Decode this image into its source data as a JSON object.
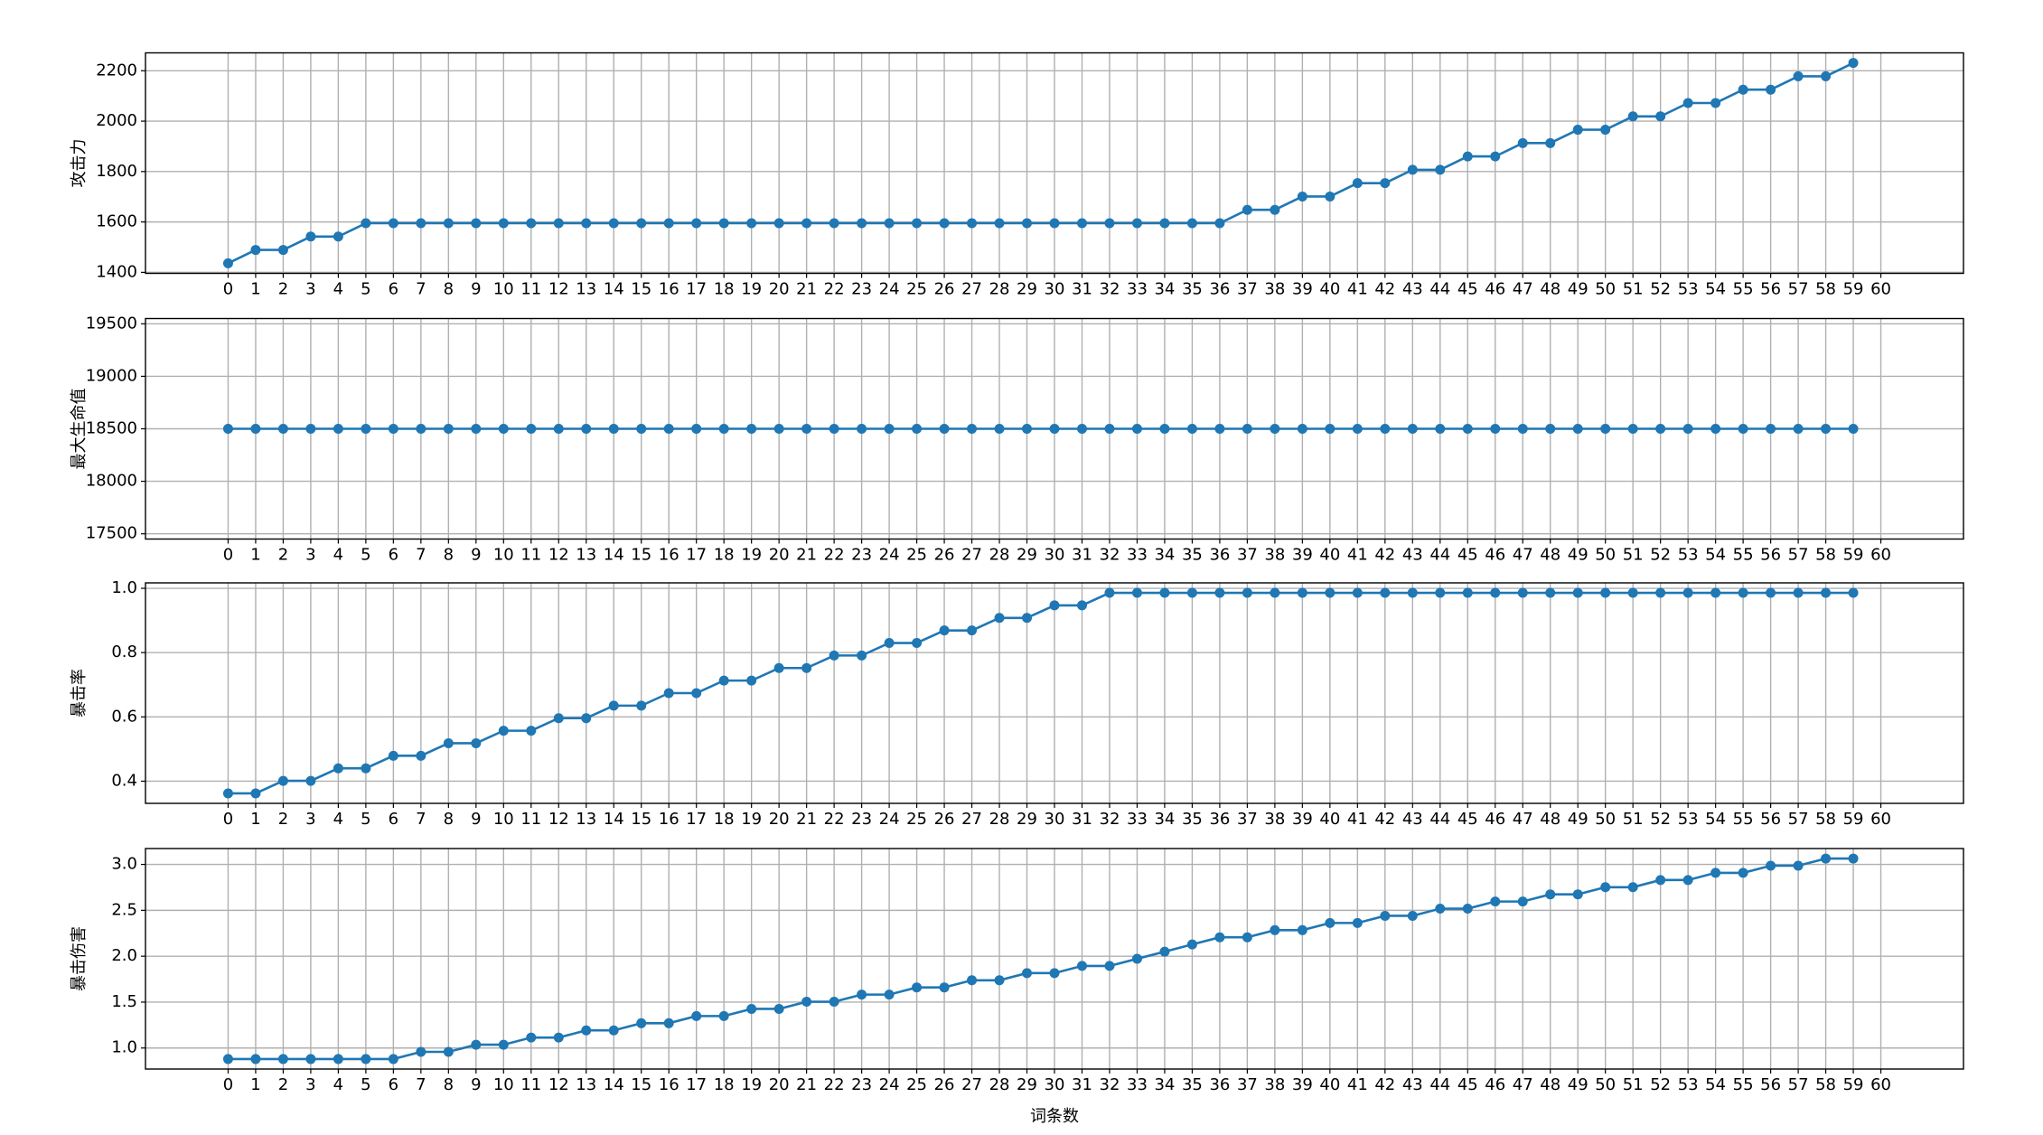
{
  "chart_data": [
    {
      "type": "line",
      "ylabel": "攻击力",
      "x": [
        0,
        1,
        2,
        3,
        4,
        5,
        6,
        7,
        8,
        9,
        10,
        11,
        12,
        13,
        14,
        15,
        16,
        17,
        18,
        19,
        20,
        21,
        22,
        23,
        24,
        25,
        26,
        27,
        28,
        29,
        30,
        31,
        32,
        33,
        34,
        35,
        36,
        37,
        38,
        39,
        40,
        41,
        42,
        43,
        44,
        45,
        46,
        47,
        48,
        49,
        50,
        51,
        52,
        53,
        54,
        55,
        56,
        57,
        58,
        59
      ],
      "series": [
        {
          "color": "#1f77b4",
          "values": [
            1436,
            1489,
            1489,
            1542,
            1542,
            1595,
            1595,
            1595,
            1595,
            1595,
            1595,
            1595,
            1595,
            1595,
            1595,
            1595,
            1595,
            1595,
            1595,
            1595,
            1595,
            1595,
            1595,
            1595,
            1595,
            1595,
            1595,
            1595,
            1595,
            1595,
            1595,
            1595,
            1595,
            1595,
            1595,
            1595,
            1595,
            1648,
            1648,
            1701,
            1701,
            1754,
            1754,
            1807,
            1807,
            1860,
            1860,
            1913,
            1913,
            1966,
            1966,
            2019,
            2019,
            2072,
            2072,
            2125,
            2125,
            2178,
            2178,
            2231
          ]
        }
      ],
      "xlim": [
        -3,
        63
      ],
      "xticks": [
        0,
        1,
        2,
        3,
        4,
        5,
        6,
        7,
        8,
        9,
        10,
        11,
        12,
        13,
        14,
        15,
        16,
        17,
        18,
        19,
        20,
        21,
        22,
        23,
        24,
        25,
        26,
        27,
        28,
        29,
        30,
        31,
        32,
        33,
        34,
        35,
        36,
        37,
        38,
        39,
        40,
        41,
        42,
        43,
        44,
        45,
        46,
        47,
        48,
        49,
        50,
        51,
        52,
        53,
        54,
        55,
        56,
        57,
        58,
        59,
        60
      ],
      "ylim": [
        1396,
        2271
      ],
      "yticks": [
        1400,
        1600,
        1800,
        2000,
        2200
      ],
      "grid": true
    },
    {
      "type": "line",
      "ylabel": "最大生命值",
      "x": [
        0,
        1,
        2,
        3,
        4,
        5,
        6,
        7,
        8,
        9,
        10,
        11,
        12,
        13,
        14,
        15,
        16,
        17,
        18,
        19,
        20,
        21,
        22,
        23,
        24,
        25,
        26,
        27,
        28,
        29,
        30,
        31,
        32,
        33,
        34,
        35,
        36,
        37,
        38,
        39,
        40,
        41,
        42,
        43,
        44,
        45,
        46,
        47,
        48,
        49,
        50,
        51,
        52,
        53,
        54,
        55,
        56,
        57,
        58,
        59
      ],
      "series": [
        {
          "color": "#1f77b4",
          "values": [
            18500,
            18500,
            18500,
            18500,
            18500,
            18500,
            18500,
            18500,
            18500,
            18500,
            18500,
            18500,
            18500,
            18500,
            18500,
            18500,
            18500,
            18500,
            18500,
            18500,
            18500,
            18500,
            18500,
            18500,
            18500,
            18500,
            18500,
            18500,
            18500,
            18500,
            18500,
            18500,
            18500,
            18500,
            18500,
            18500,
            18500,
            18500,
            18500,
            18500,
            18500,
            18500,
            18500,
            18500,
            18500,
            18500,
            18500,
            18500,
            18500,
            18500,
            18500,
            18500,
            18500,
            18500,
            18500,
            18500,
            18500,
            18500,
            18500,
            18500
          ]
        }
      ],
      "xlim": [
        -3,
        63
      ],
      "xticks": [
        0,
        1,
        2,
        3,
        4,
        5,
        6,
        7,
        8,
        9,
        10,
        11,
        12,
        13,
        14,
        15,
        16,
        17,
        18,
        19,
        20,
        21,
        22,
        23,
        24,
        25,
        26,
        27,
        28,
        29,
        30,
        31,
        32,
        33,
        34,
        35,
        36,
        37,
        38,
        39,
        40,
        41,
        42,
        43,
        44,
        45,
        46,
        47,
        48,
        49,
        50,
        51,
        52,
        53,
        54,
        55,
        56,
        57,
        58,
        59,
        60
      ],
      "ylim": [
        17450,
        19550
      ],
      "yticks": [
        17500,
        18000,
        18500,
        19000,
        19500
      ],
      "grid": true
    },
    {
      "type": "line",
      "ylabel": "暴击率",
      "x": [
        0,
        1,
        2,
        3,
        4,
        5,
        6,
        7,
        8,
        9,
        10,
        11,
        12,
        13,
        14,
        15,
        16,
        17,
        18,
        19,
        20,
        21,
        22,
        23,
        24,
        25,
        26,
        27,
        28,
        29,
        30,
        31,
        32,
        33,
        34,
        35,
        36,
        37,
        38,
        39,
        40,
        41,
        42,
        43,
        44,
        45,
        46,
        47,
        48,
        49,
        50,
        51,
        52,
        53,
        54,
        55,
        56,
        57,
        58,
        59
      ],
      "series": [
        {
          "color": "#1f77b4",
          "values": [
            0.362,
            0.362,
            0.401,
            0.401,
            0.44,
            0.44,
            0.479,
            0.479,
            0.518,
            0.518,
            0.557,
            0.557,
            0.596,
            0.596,
            0.635,
            0.635,
            0.674,
            0.674,
            0.713,
            0.713,
            0.752,
            0.752,
            0.791,
            0.791,
            0.83,
            0.83,
            0.869,
            0.869,
            0.908,
            0.908,
            0.947,
            0.947,
            0.986,
            0.986,
            0.986,
            0.986,
            0.986,
            0.986,
            0.986,
            0.986,
            0.986,
            0.986,
            0.986,
            0.986,
            0.986,
            0.986,
            0.986,
            0.986,
            0.986,
            0.986,
            0.986,
            0.986,
            0.986,
            0.986,
            0.986,
            0.986,
            0.986,
            0.986,
            0.986,
            0.986
          ]
        }
      ],
      "xlim": [
        -3,
        63
      ],
      "xticks": [
        0,
        1,
        2,
        3,
        4,
        5,
        6,
        7,
        8,
        9,
        10,
        11,
        12,
        13,
        14,
        15,
        16,
        17,
        18,
        19,
        20,
        21,
        22,
        23,
        24,
        25,
        26,
        27,
        28,
        29,
        30,
        31,
        32,
        33,
        34,
        35,
        36,
        37,
        38,
        39,
        40,
        41,
        42,
        43,
        44,
        45,
        46,
        47,
        48,
        49,
        50,
        51,
        52,
        53,
        54,
        55,
        56,
        57,
        58,
        59,
        60
      ],
      "ylim": [
        0.331,
        1.017
      ],
      "yticks": [
        0.4,
        0.6,
        0.8,
        {
          "value": 1,
          "label": "1.0"
        }
      ],
      "grid": true
    },
    {
      "type": "line",
      "ylabel": "暴击伤害",
      "xlabel": "词条数",
      "x": [
        0,
        1,
        2,
        3,
        4,
        5,
        6,
        7,
        8,
        9,
        10,
        11,
        12,
        13,
        14,
        15,
        16,
        17,
        18,
        19,
        20,
        21,
        22,
        23,
        24,
        25,
        26,
        27,
        28,
        29,
        30,
        31,
        32,
        33,
        34,
        35,
        36,
        37,
        38,
        39,
        40,
        41,
        42,
        43,
        44,
        45,
        46,
        47,
        48,
        49,
        50,
        51,
        52,
        53,
        54,
        55,
        56,
        57,
        58,
        59
      ],
      "series": [
        {
          "color": "#1f77b4",
          "values": [
            0.88,
            0.88,
            0.88,
            0.88,
            0.88,
            0.88,
            0.88,
            0.958,
            0.958,
            1.036,
            1.036,
            1.114,
            1.114,
            1.192,
            1.192,
            1.27,
            1.27,
            1.348,
            1.348,
            1.426,
            1.426,
            1.504,
            1.504,
            1.582,
            1.582,
            1.66,
            1.66,
            1.738,
            1.738,
            1.816,
            1.816,
            1.894,
            1.894,
            1.972,
            2.05,
            2.128,
            2.206,
            2.206,
            2.284,
            2.284,
            2.362,
            2.362,
            2.44,
            2.44,
            2.518,
            2.518,
            2.596,
            2.596,
            2.674,
            2.674,
            2.752,
            2.752,
            2.83,
            2.83,
            2.908,
            2.908,
            2.986,
            2.986,
            3.064,
            3.064
          ]
        }
      ],
      "xlim": [
        -3,
        63
      ],
      "xticks": [
        0,
        1,
        2,
        3,
        4,
        5,
        6,
        7,
        8,
        9,
        10,
        11,
        12,
        13,
        14,
        15,
        16,
        17,
        18,
        19,
        20,
        21,
        22,
        23,
        24,
        25,
        26,
        27,
        28,
        29,
        30,
        31,
        32,
        33,
        34,
        35,
        36,
        37,
        38,
        39,
        40,
        41,
        42,
        43,
        44,
        45,
        46,
        47,
        48,
        49,
        50,
        51,
        52,
        53,
        54,
        55,
        56,
        57,
        58,
        59,
        60
      ],
      "ylim": [
        0.771,
        3.173
      ],
      "yticks": [
        {
          "value": 1,
          "label": "1.0"
        },
        1.5,
        {
          "value": 2,
          "label": "2.0"
        },
        2.5,
        {
          "value": 3,
          "label": "3.0"
        }
      ],
      "grid": true
    }
  ]
}
